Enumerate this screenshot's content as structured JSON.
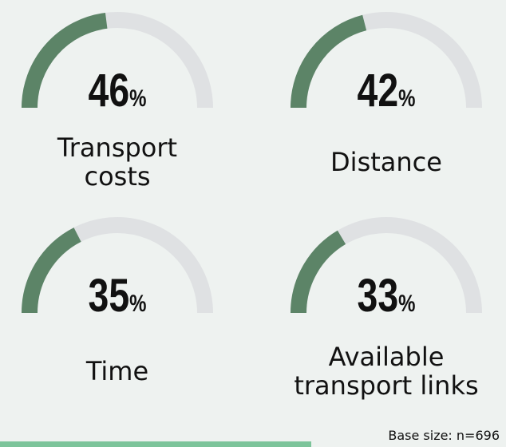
{
  "chart_data": {
    "type": "gauge",
    "categories": [
      "Transport costs",
      "Distance",
      "Time",
      "Available transport links"
    ],
    "values": [
      46,
      42,
      35,
      33
    ],
    "value_labels": [
      "46%",
      "42%",
      "35%",
      "33%"
    ],
    "ylim": [
      0,
      100
    ],
    "color": "#5c8467",
    "track_color": "#dfe1e3",
    "note": "Base size: n=696"
  }
}
